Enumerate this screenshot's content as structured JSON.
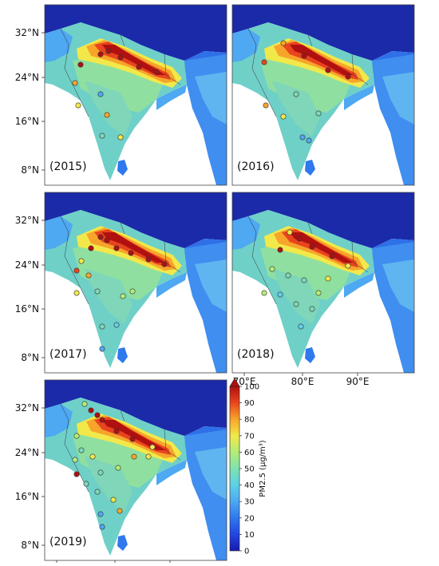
{
  "figure": {
    "panels": [
      {
        "year_label": "(2015)"
      },
      {
        "year_label": "(2016)"
      },
      {
        "year_label": "(2017)"
      },
      {
        "year_label": "(2018)"
      },
      {
        "year_label": "(2019)"
      }
    ],
    "lat_ticks": [
      "32°N",
      "24°N",
      "16°N",
      "8°N"
    ],
    "lon_ticks": [
      "70°E",
      "80°E",
      "90°E"
    ],
    "colorbar": {
      "label": "PM2.5 (μg/m³)",
      "ticks": [
        "0",
        "10",
        "20",
        "30",
        "40",
        "50",
        "60",
        "70",
        "80",
        "90",
        "100"
      ],
      "colors": [
        "#1a1ab0",
        "#2346e0",
        "#2f78ee",
        "#4ea8f2",
        "#5fd0e6",
        "#7fe2b0",
        "#b4ec78",
        "#f2e84a",
        "#f7a52a",
        "#e8451e",
        "#b01010"
      ]
    },
    "colors": {
      "ocean": "#ffffff",
      "tibet": "#1a2aa8",
      "land_base": "#6fd0c8"
    }
  }
}
